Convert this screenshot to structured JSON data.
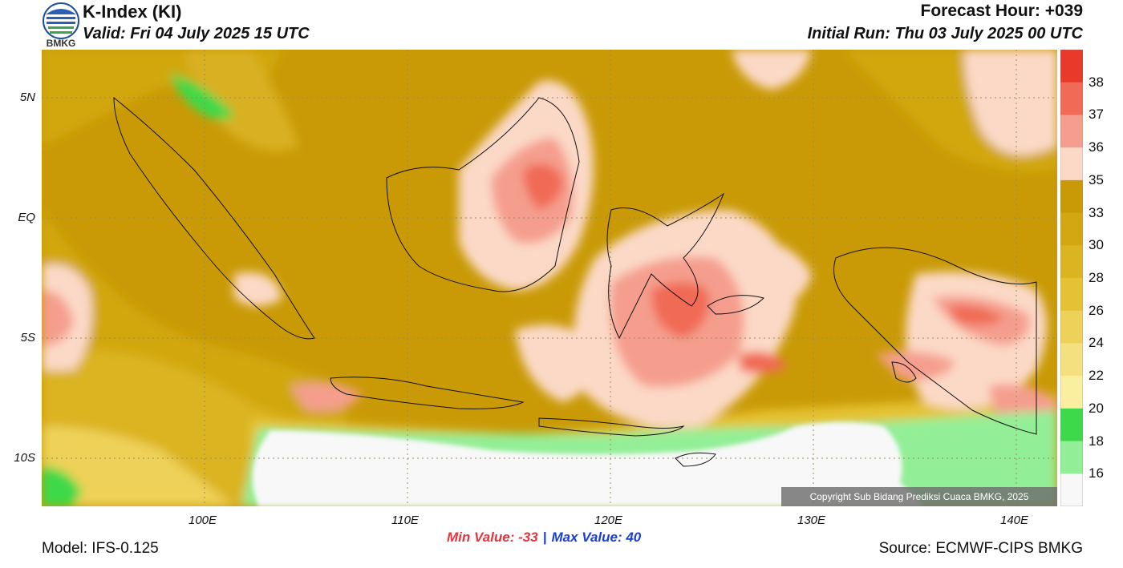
{
  "header": {
    "title": "K-Index (KI)",
    "valid": "Valid: Fri 04 July 2025 15 UTC",
    "forecast_hour": "Forecast Hour: +039",
    "initial_run": "Initial Run: Thu 03 July 2025 00 UTC",
    "logo_text": "BMKG"
  },
  "axes": {
    "lat_ticks": [
      "5N",
      "EQ",
      "5S",
      "10S"
    ],
    "lon_ticks": [
      "100E",
      "110E",
      "120E",
      "130E",
      "140E"
    ]
  },
  "colorbar": {
    "labels": [
      "38",
      "37",
      "36",
      "35",
      "33",
      "30",
      "28",
      "26",
      "24",
      "22",
      "20",
      "18",
      "16"
    ],
    "colors": [
      "#e8392a",
      "#f06a55",
      "#f59e8e",
      "#fcd9c7",
      "#c99a06",
      "#d2a711",
      "#dbb422",
      "#e5c233",
      "#eed158",
      "#f4e07e",
      "#faee9f",
      "#3ed94a",
      "#93ef97",
      "#f8f8f8"
    ]
  },
  "stats": {
    "min_label": "Min Value: -33",
    "separator": "|",
    "max_label": "Max Value:  40"
  },
  "footer": {
    "model": "Model: IFS-0.125",
    "source": "Source: ECMWF-CIPS BMKG",
    "copyright": "Copyright Sub Bidang Prediksi Cuaca BMKG, 2025"
  }
}
